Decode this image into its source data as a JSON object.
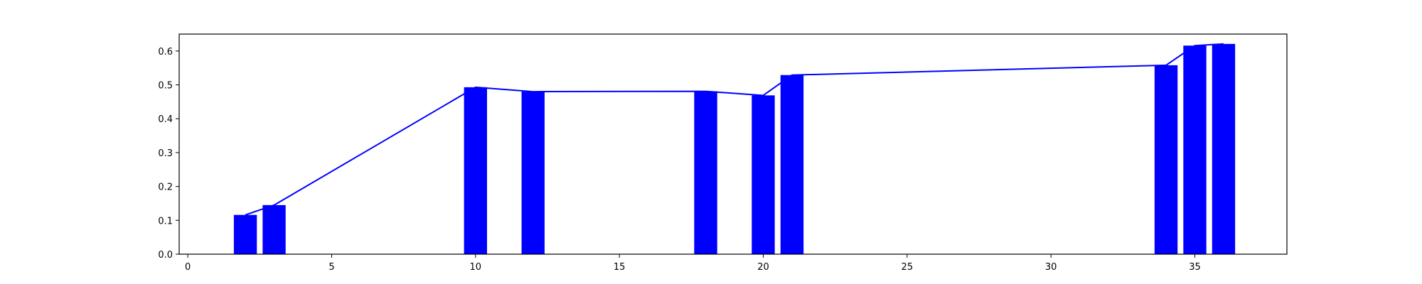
{
  "chart_data": {
    "type": "bar",
    "title": "",
    "xlabel": "",
    "ylabel": "",
    "xlim": [
      -0.3,
      38.2
    ],
    "ylim": [
      0,
      0.65
    ],
    "xticks": [
      0,
      5,
      10,
      15,
      20,
      25,
      30,
      35
    ],
    "yticks": [
      0.0,
      0.1,
      0.2,
      0.3,
      0.4,
      0.5,
      0.6
    ],
    "grid": false,
    "legend": "none",
    "bar_width": 0.8,
    "colors": {
      "bar": "#0000ff",
      "line": "#0000ff",
      "axis": "#000000"
    },
    "series": [
      {
        "type": "bar",
        "x": [
          2,
          3,
          10,
          12,
          18,
          20,
          21,
          34,
          35,
          36
        ],
        "values": [
          0.116,
          0.145,
          0.493,
          0.48,
          0.481,
          0.469,
          0.529,
          0.558,
          0.616,
          0.621
        ]
      },
      {
        "type": "line",
        "x": [
          2,
          3,
          10,
          12,
          18,
          20,
          21,
          34,
          35,
          36
        ],
        "values": [
          0.116,
          0.145,
          0.493,
          0.48,
          0.481,
          0.469,
          0.529,
          0.558,
          0.616,
          0.621
        ]
      }
    ]
  }
}
